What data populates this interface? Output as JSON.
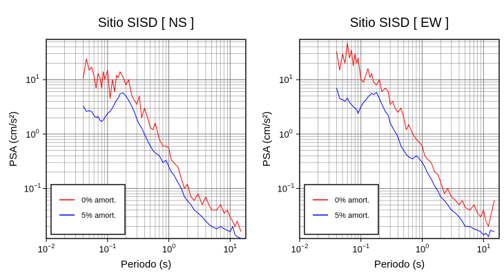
{
  "colors": {
    "series_0": "#ff0000",
    "series_5": "#0000ff"
  },
  "chart_data": [
    {
      "type": "line",
      "title": "Sitio SISD [ NS ]",
      "xlabel": "Periodo (s)",
      "ylabel": "PSA (cm/s²)",
      "x_scale": "log",
      "y_scale": "log",
      "xlim": [
        0.01,
        18
      ],
      "ylim": [
        0.012,
        55
      ],
      "x_ticks": [
        "10^-2",
        "10^-1",
        "10^0",
        "10^1"
      ],
      "y_ticks": [
        "10^-1",
        "10^0",
        "10^1"
      ],
      "grid": true,
      "legend_position": "bottom-left",
      "series": [
        {
          "name": "0% amort.",
          "color": "#ff0000",
          "x": [
            0.04,
            0.045,
            0.05,
            0.055,
            0.06,
            0.065,
            0.07,
            0.075,
            0.08,
            0.085,
            0.09,
            0.1,
            0.11,
            0.12,
            0.13,
            0.14,
            0.15,
            0.16,
            0.18,
            0.2,
            0.22,
            0.25,
            0.28,
            0.3,
            0.33,
            0.36,
            0.4,
            0.45,
            0.5,
            0.55,
            0.6,
            0.7,
            0.8,
            0.9,
            1.0,
            1.1,
            1.2,
            1.4,
            1.6,
            1.8,
            2.0,
            2.3,
            2.6,
            3.0,
            3.5,
            4.0,
            4.5,
            5.0,
            6.0,
            7.0,
            8.0,
            9.0,
            10.0,
            11.0,
            12.0,
            13.0,
            15.0
          ],
          "y": [
            10.5,
            24,
            15,
            17,
            12,
            7,
            13,
            11,
            7,
            14,
            10,
            15,
            4.5,
            10,
            6,
            12,
            11,
            14,
            11,
            8,
            10,
            5,
            4,
            3.5,
            5,
            2,
            3,
            2,
            1.3,
            1.2,
            1.6,
            0.8,
            0.6,
            0.6,
            0.55,
            0.33,
            0.3,
            0.25,
            0.15,
            0.1,
            0.12,
            0.07,
            0.06,
            0.08,
            0.05,
            0.07,
            0.05,
            0.04,
            0.04,
            0.05,
            0.035,
            0.04,
            0.03,
            0.025,
            0.02,
            0.025,
            0.016
          ]
        },
        {
          "name": "5% amort.",
          "color": "#0000ff",
          "x": [
            0.04,
            0.045,
            0.05,
            0.055,
            0.06,
            0.065,
            0.07,
            0.075,
            0.08,
            0.085,
            0.09,
            0.1,
            0.11,
            0.12,
            0.13,
            0.14,
            0.15,
            0.16,
            0.18,
            0.2,
            0.22,
            0.25,
            0.28,
            0.3,
            0.33,
            0.36,
            0.4,
            0.45,
            0.5,
            0.55,
            0.6,
            0.7,
            0.8,
            0.9,
            1.0,
            1.1,
            1.2,
            1.4,
            1.6,
            1.8,
            2.0,
            2.3,
            2.6,
            3.0,
            3.5,
            4.0,
            4.5,
            5.0,
            6.0,
            7.0,
            8.0,
            9.0,
            10.0,
            11.0,
            12.0,
            13.0,
            15.0
          ],
          "y": [
            3.3,
            2.6,
            2.7,
            2.6,
            2.2,
            2.0,
            2.1,
            1.8,
            1.7,
            1.8,
            2.0,
            2.4,
            2.6,
            3.0,
            3.6,
            4.2,
            4.6,
            5.5,
            5.7,
            5.0,
            4.2,
            3.2,
            2.4,
            1.9,
            1.5,
            1.3,
            1.0,
            0.75,
            0.6,
            0.5,
            0.45,
            0.4,
            0.3,
            0.33,
            0.25,
            0.2,
            0.18,
            0.13,
            0.1,
            0.07,
            0.06,
            0.05,
            0.04,
            0.035,
            0.03,
            0.025,
            0.022,
            0.02,
            0.018,
            0.02,
            0.018,
            0.017,
            0.016,
            0.02,
            0.014,
            0.013,
            0.012
          ]
        }
      ]
    },
    {
      "type": "line",
      "title": "Sitio SISD [ EW ]",
      "xlabel": "Periodo (s)",
      "ylabel": "PSA (cm/s²)",
      "x_scale": "log",
      "y_scale": "log",
      "xlim": [
        0.01,
        18
      ],
      "ylim": [
        0.012,
        55
      ],
      "x_ticks": [
        "10^-2",
        "10^-1",
        "10^0",
        "10^1"
      ],
      "y_ticks": [
        "10^-1",
        "10^0",
        "10^1"
      ],
      "grid": true,
      "legend_position": "bottom-left",
      "series": [
        {
          "name": "0% amort.",
          "color": "#ff0000",
          "x": [
            0.04,
            0.045,
            0.05,
            0.055,
            0.06,
            0.065,
            0.07,
            0.075,
            0.08,
            0.085,
            0.09,
            0.1,
            0.11,
            0.12,
            0.13,
            0.14,
            0.15,
            0.16,
            0.18,
            0.2,
            0.22,
            0.25,
            0.28,
            0.3,
            0.33,
            0.36,
            0.4,
            0.45,
            0.5,
            0.55,
            0.6,
            0.7,
            0.8,
            0.9,
            1.0,
            1.1,
            1.2,
            1.4,
            1.6,
            1.8,
            2.0,
            2.3,
            2.6,
            3.0,
            3.5,
            4.0,
            4.5,
            5.0,
            6.0,
            7.0,
            8.0,
            9.0,
            10.0,
            11.0,
            12.0,
            13.0,
            15.0
          ],
          "y": [
            33,
            15,
            30,
            20,
            47,
            25,
            35,
            18,
            30,
            20,
            25,
            10,
            9,
            12,
            16,
            11,
            13,
            9,
            8,
            10,
            6,
            7,
            6,
            3.5,
            4,
            3,
            2.5,
            3,
            2.0,
            1.2,
            1.5,
            1.0,
            0.8,
            0.7,
            0.6,
            0.4,
            0.35,
            0.3,
            0.2,
            0.18,
            0.13,
            0.08,
            0.1,
            0.07,
            0.06,
            0.05,
            0.06,
            0.045,
            0.04,
            0.05,
            0.035,
            0.03,
            0.04,
            0.025,
            0.02,
            0.03,
            0.06
          ]
        },
        {
          "name": "5% amort.",
          "color": "#0000ff",
          "x": [
            0.04,
            0.045,
            0.05,
            0.055,
            0.06,
            0.065,
            0.07,
            0.075,
            0.08,
            0.085,
            0.09,
            0.1,
            0.11,
            0.12,
            0.13,
            0.14,
            0.15,
            0.16,
            0.18,
            0.2,
            0.22,
            0.25,
            0.28,
            0.3,
            0.33,
            0.36,
            0.4,
            0.45,
            0.5,
            0.55,
            0.6,
            0.7,
            0.8,
            0.9,
            1.0,
            1.1,
            1.2,
            1.4,
            1.6,
            1.8,
            2.0,
            2.3,
            2.6,
            3.0,
            3.5,
            4.0,
            4.5,
            5.0,
            6.0,
            7.0,
            8.0,
            9.0,
            10.0,
            11.0,
            12.0,
            13.0,
            15.0
          ],
          "y": [
            7.0,
            4.5,
            4.3,
            4.0,
            4.6,
            3.8,
            3.5,
            3.2,
            3.0,
            2.8,
            2.4,
            3.2,
            3.8,
            4.2,
            4.8,
            5.2,
            5.6,
            5.3,
            5.8,
            4.5,
            3.5,
            2.6,
            2.2,
            1.6,
            1.3,
            1.1,
            0.9,
            0.6,
            0.5,
            0.42,
            0.38,
            0.35,
            0.4,
            0.35,
            0.3,
            0.25,
            0.2,
            0.15,
            0.11,
            0.09,
            0.07,
            0.06,
            0.05,
            0.04,
            0.035,
            0.03,
            0.025,
            0.02,
            0.02,
            0.018,
            0.017,
            0.016,
            0.014,
            0.015,
            0.013,
            0.017,
            0.016
          ]
        }
      ]
    }
  ]
}
